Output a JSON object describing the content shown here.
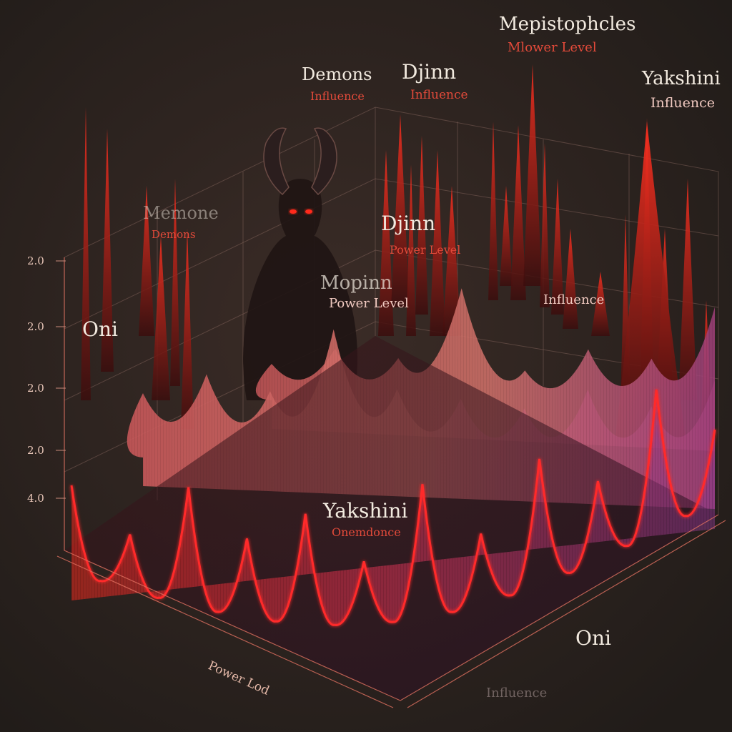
{
  "chart_data": {
    "type": "area",
    "y_tick_labels": [
      "2.0",
      "2.0",
      "2.0",
      "2.0",
      "4.0"
    ],
    "x_axis_label": "Power Lod",
    "depth_axis_label": "Influence",
    "labels": [
      {
        "main": "Mepistophcles",
        "sub": "Mlower Level"
      },
      {
        "main": "Demons",
        "sub": "Influence"
      },
      {
        "main": "Djinn",
        "sub": "Influence"
      },
      {
        "main": "Yakshini",
        "sub": "Influence"
      },
      {
        "main": "Memone",
        "sub": "Demons"
      },
      {
        "main": "Djinn",
        "sub": "Power Level"
      },
      {
        "main": "Mopinn",
        "sub": "Power Level"
      },
      {
        "main": "Oni",
        "sub": ""
      },
      {
        "main": "",
        "sub": "Influence"
      },
      {
        "main": "Yakshini",
        "sub": "Onemdonce"
      },
      {
        "main": "Oni",
        "sub": ""
      }
    ],
    "series": [
      {
        "peaks": [
          0.55,
          0.35,
          0.75,
          0.5,
          0.7,
          0.4,
          0.85,
          0.45,
          0.8,
          0.5,
          0.9,
          0.45
        ]
      },
      {
        "peaks": [
          0.45,
          0.6,
          0.5,
          0.95,
          0.55,
          0.5,
          0.45,
          0.6,
          0.5,
          0.7
        ]
      },
      {
        "peaks": [
          0.3,
          0.45,
          0.4,
          1.0,
          0.35,
          0.55,
          0.5,
          0.95
        ]
      }
    ],
    "colors": {
      "front": "#ff3b30",
      "mid": "#e06a6a",
      "back": "#a0306a",
      "accent": "#ff2a2a"
    }
  }
}
